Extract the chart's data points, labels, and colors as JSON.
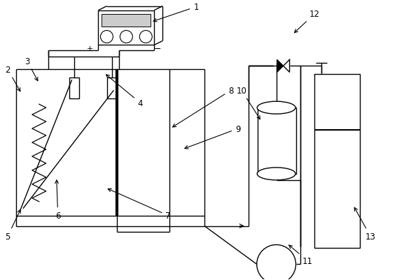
{
  "bg_color": "#ffffff",
  "lc": "#000000",
  "lw": 1.0,
  "lw_thick": 3.0,
  "figsize": [
    5.67,
    4.02
  ],
  "dpi": 100
}
